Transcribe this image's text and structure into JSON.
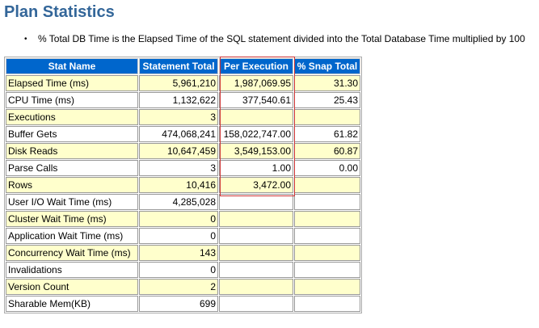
{
  "page": {
    "title": "Plan Statistics",
    "note": "% Total DB Time is the Elapsed Time of the SQL statement divided into the Total Database Time multiplied by 100"
  },
  "table": {
    "headers": [
      "Stat Name",
      "Statement Total",
      "Per Execution",
      "% Snap Total"
    ],
    "rows": [
      {
        "name": "Elapsed Time (ms)",
        "total": "5,961,210",
        "per_exec": "1,987,069.95",
        "snap": "31.30"
      },
      {
        "name": "CPU Time (ms)",
        "total": "1,132,622",
        "per_exec": "377,540.61",
        "snap": "25.43"
      },
      {
        "name": "Executions",
        "total": "3",
        "per_exec": "",
        "snap": ""
      },
      {
        "name": "Buffer Gets",
        "total": "474,068,241",
        "per_exec": "158,022,747.00",
        "snap": "61.82"
      },
      {
        "name": "Disk Reads",
        "total": "10,647,459",
        "per_exec": "3,549,153.00",
        "snap": "60.87"
      },
      {
        "name": "Parse Calls",
        "total": "3",
        "per_exec": "1.00",
        "snap": "0.00"
      },
      {
        "name": "Rows",
        "total": "10,416",
        "per_exec": "3,472.00",
        "snap": ""
      },
      {
        "name": "User I/O Wait Time (ms)",
        "total": "4,285,028",
        "per_exec": "",
        "snap": ""
      },
      {
        "name": "Cluster Wait Time (ms)",
        "total": "0",
        "per_exec": "",
        "snap": ""
      },
      {
        "name": "Application Wait Time (ms)",
        "total": "0",
        "per_exec": "",
        "snap": ""
      },
      {
        "name": "Concurrency Wait Time (ms)",
        "total": "143",
        "per_exec": "",
        "snap": ""
      },
      {
        "name": "Invalidations",
        "total": "0",
        "per_exec": "",
        "snap": ""
      },
      {
        "name": "Version Count",
        "total": "2",
        "per_exec": "",
        "snap": ""
      },
      {
        "name": "Sharable Mem(KB)",
        "total": "699",
        "per_exec": "",
        "snap": ""
      }
    ]
  },
  "colors": {
    "title": "#336699",
    "header_bg": "#0066cc",
    "row_odd_bg": "#ffffcc",
    "row_even_bg": "#ffffff",
    "highlight_border": "#cc3333"
  }
}
